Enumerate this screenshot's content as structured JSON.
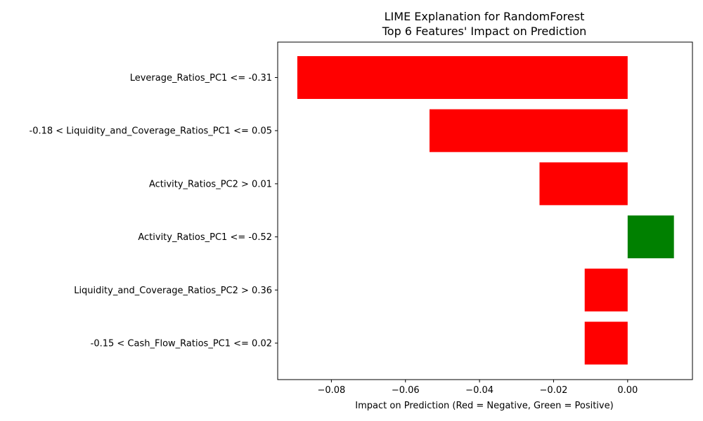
{
  "chart_data": {
    "type": "bar",
    "orientation": "horizontal",
    "title": "LIME Explanation for RandomForest\nTop 6 Features' Impact on Prediction",
    "xlabel": "Impact on Prediction (Red = Negative, Green = Positive)",
    "ylabel": "",
    "xlim": [
      -0.0945,
      0.0175
    ],
    "xticks": [
      -0.08,
      -0.06,
      -0.04,
      -0.02,
      0.0
    ],
    "xtick_labels": [
      "−0.08",
      "−0.06",
      "−0.04",
      "−0.02",
      "0.00"
    ],
    "categories": [
      "Leverage_Ratios_PC1 <= -0.31",
      "-0.18 < Liquidity_and_Coverage_Ratios_PC1 <= 0.05",
      "Activity_Ratios_PC2 > 0.01",
      "Activity_Ratios_PC1 <= -0.52",
      "Liquidity_and_Coverage_Ratios_PC2 > 0.36",
      "-0.15 < Cash_Flow_Ratios_PC1 <= 0.02"
    ],
    "values": [
      -0.0892,
      -0.0535,
      -0.0238,
      0.0125,
      -0.0116,
      -0.0116
    ],
    "colors": {
      "negative": "#ff0000",
      "positive": "#008000"
    },
    "grid": false,
    "legend": "none"
  }
}
